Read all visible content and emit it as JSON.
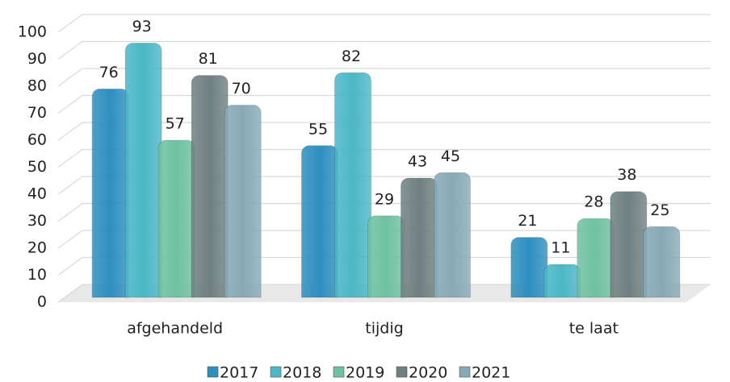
{
  "chart_data": {
    "type": "bar",
    "categories": [
      "afgehandeld",
      "tijdig",
      "te laat"
    ],
    "series": [
      {
        "name": "2017",
        "color": "#2e8fbf",
        "values": [
          76,
          55,
          21
        ]
      },
      {
        "name": "2018",
        "color": "#4bb7c6",
        "values": [
          93,
          82,
          11
        ]
      },
      {
        "name": "2019",
        "color": "#6fc1a2",
        "values": [
          57,
          29,
          28
        ]
      },
      {
        "name": "2020",
        "color": "#6f8081",
        "values": [
          81,
          43,
          38
        ]
      },
      {
        "name": "2021",
        "color": "#87a9b6",
        "values": [
          70,
          45,
          25
        ]
      }
    ],
    "ylim": [
      0,
      100
    ],
    "yticks": [
      0,
      10,
      20,
      30,
      40,
      50,
      60,
      70,
      80,
      90,
      100
    ],
    "grid": true,
    "legend": "bottom"
  }
}
